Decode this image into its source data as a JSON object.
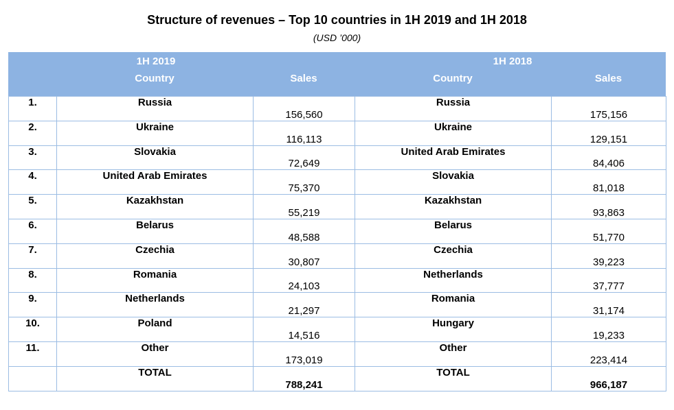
{
  "title": "Structure of revenues – Top 10 countries in 1H 2019 and 1H 2018",
  "subtitle": "(USD ’000)",
  "header": {
    "period_2019": "1H 2019",
    "period_2018": "1H 2018",
    "country_label": "Country",
    "sales_label": "Sales"
  },
  "rows": [
    {
      "rank": "1.",
      "country_2019": "Russia",
      "sales_2019": "156,560",
      "country_2018": "Russia",
      "sales_2018": "175,156"
    },
    {
      "rank": "2.",
      "country_2019": "Ukraine",
      "sales_2019": "116,113",
      "country_2018": "Ukraine",
      "sales_2018": "129,151"
    },
    {
      "rank": "3.",
      "country_2019": "Slovakia",
      "sales_2019": "72,649",
      "country_2018": "United Arab Emirates",
      "sales_2018": "84,406"
    },
    {
      "rank": "4.",
      "country_2019": "United Arab Emirates",
      "sales_2019": "75,370",
      "country_2018": "Slovakia",
      "sales_2018": "81,018"
    },
    {
      "rank": "5.",
      "country_2019": "Kazakhstan",
      "sales_2019": "55,219",
      "country_2018": "Kazakhstan",
      "sales_2018": "93,863"
    },
    {
      "rank": "6.",
      "country_2019": "Belarus",
      "sales_2019": "48,588",
      "country_2018": "Belarus",
      "sales_2018": "51,770"
    },
    {
      "rank": "7.",
      "country_2019": "Czechia",
      "sales_2019": "30,807",
      "country_2018": "Czechia",
      "sales_2018": "39,223"
    },
    {
      "rank": "8.",
      "country_2019": "Romania",
      "sales_2019": "24,103",
      "country_2018": "Netherlands",
      "sales_2018": "37,777"
    },
    {
      "rank": "9.",
      "country_2019": "Netherlands",
      "sales_2019": "21,297",
      "country_2018": "Romania",
      "sales_2018": "31,174"
    },
    {
      "rank": "10.",
      "country_2019": "Poland",
      "sales_2019": "14,516",
      "country_2018": "Hungary",
      "sales_2018": "19,233"
    },
    {
      "rank": "11.",
      "country_2019": "Other",
      "sales_2019": "173,019",
      "country_2018": "Other",
      "sales_2018": "223,414"
    }
  ],
  "total": {
    "label_2019": "TOTAL",
    "sales_2019": "788,241",
    "label_2018": "TOTAL",
    "sales_2018": "966,187"
  },
  "colors": {
    "header_bg": "#8db3e2",
    "border": "#9bbce3"
  }
}
